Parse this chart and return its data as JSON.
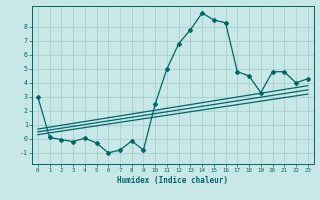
{
  "title": "",
  "xlabel": "Humidex (Indice chaleur)",
  "bg_color": "#c8e8e8",
  "grid_color": "#a8d0d0",
  "line_color": "#006666",
  "xlim": [
    -0.5,
    23.5
  ],
  "ylim": [
    -1.8,
    9.5
  ],
  "xticks": [
    0,
    1,
    2,
    3,
    4,
    5,
    6,
    7,
    8,
    9,
    10,
    11,
    12,
    13,
    14,
    15,
    16,
    17,
    18,
    19,
    20,
    21,
    22,
    23
  ],
  "yticks": [
    -1,
    0,
    1,
    2,
    3,
    4,
    5,
    6,
    7,
    8
  ],
  "main_x": [
    0,
    1,
    2,
    3,
    4,
    5,
    6,
    7,
    8,
    9,
    10,
    11,
    12,
    13,
    14,
    15,
    16,
    17,
    18,
    19,
    20,
    21,
    22,
    23
  ],
  "main_y": [
    3.0,
    0.1,
    -0.05,
    -0.2,
    0.05,
    -0.3,
    -1.0,
    -0.8,
    -0.15,
    -0.8,
    2.5,
    5.0,
    6.8,
    7.8,
    9.0,
    8.5,
    8.3,
    4.8,
    4.5,
    3.3,
    4.8,
    4.8,
    4.0,
    4.3
  ],
  "line2_x": [
    0,
    23
  ],
  "line2_y": [
    0.3,
    3.2
  ],
  "line3_x": [
    0,
    23
  ],
  "line3_y": [
    0.5,
    3.5
  ],
  "line4_x": [
    0,
    23
  ],
  "line4_y": [
    0.7,
    3.8
  ],
  "marker_size": 2.0,
  "line_width": 0.9
}
